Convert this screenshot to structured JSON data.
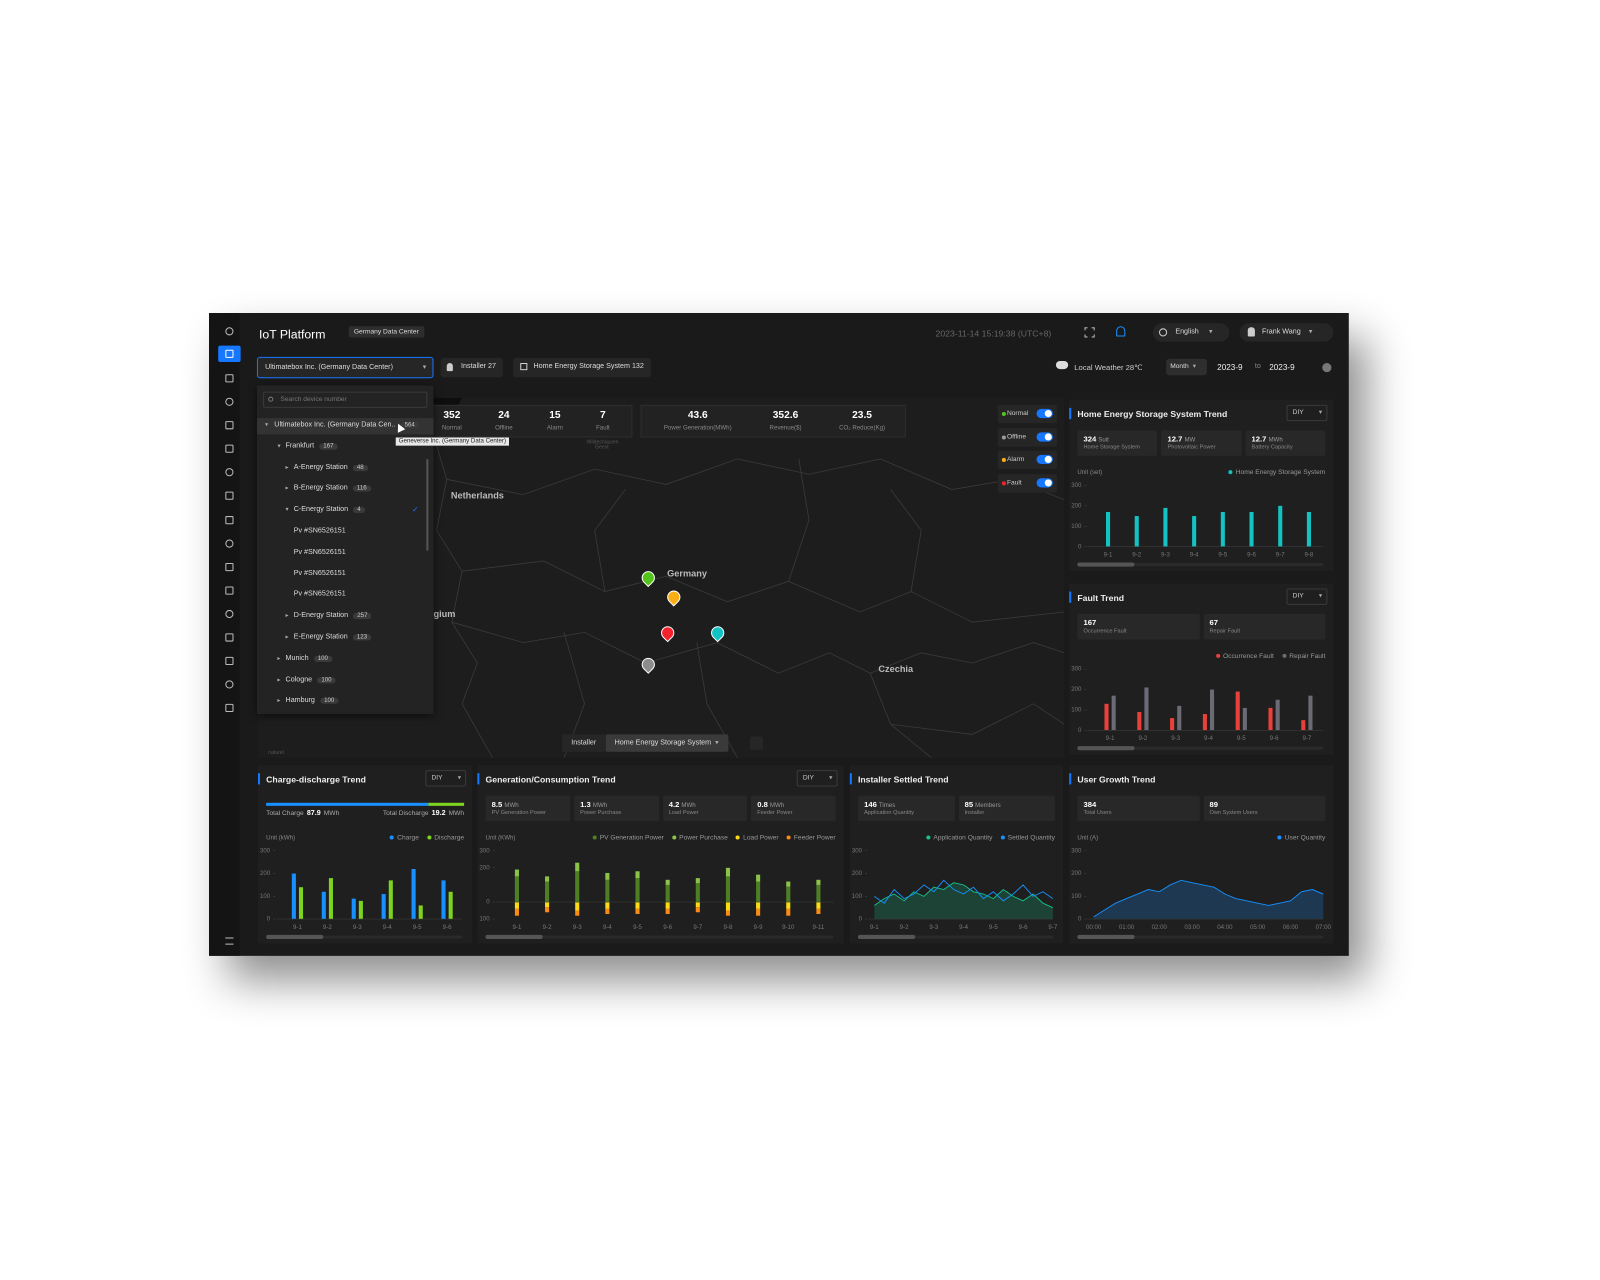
{
  "header": {
    "title": "IoT Platform",
    "badge": "Germany Data Center",
    "datetime": "2023-11-14 15:19:38 (UTC+8)",
    "language": "English",
    "user": "Frank Wang"
  },
  "toolbar": {
    "organization": "Ultimatebox Inc. (Germany Data Center)",
    "installer": "Installer 27",
    "system": "Home Energy Storage System 132",
    "weather": "Local Weather 28℃",
    "period": "Month",
    "from": "2023-9",
    "to_label": "to",
    "to": "2023-9"
  },
  "tree": {
    "search_placeholder": "Search device number",
    "tooltip": "Geneverse Inc. (Germany Data Center)",
    "nodes": [
      {
        "label": "Ultimatebox Inc. (Germany Data Cen..",
        "count": 564,
        "expanded": true,
        "hover": true,
        "children": [
          {
            "label": "Frankfurt",
            "count": 167,
            "expanded": true,
            "children": [
              {
                "label": "A-Energy Station",
                "count": 48,
                "expanded": false
              },
              {
                "label": "B-Energy Station",
                "count": 116,
                "expanded": false
              },
              {
                "label": "C-Energy Station",
                "count": 4,
                "expanded": true,
                "selected": true,
                "children": [
                  {
                    "label": "Pv #SN6526151"
                  },
                  {
                    "label": "Pv #SN6526151"
                  },
                  {
                    "label": "Pv #SN6526151"
                  },
                  {
                    "label": "Pv #SN6526151"
                  }
                ]
              },
              {
                "label": "D-Energy Station",
                "count": 257,
                "expanded": false
              },
              {
                "label": "E-Energy Station",
                "count": 123,
                "expanded": false
              }
            ]
          },
          {
            "label": "Munich",
            "count": 100,
            "expanded": false
          },
          {
            "label": "Cologne",
            "count": 100,
            "expanded": false
          },
          {
            "label": "Hamburg",
            "count": 100,
            "expanded": false
          }
        ]
      }
    ]
  },
  "map": {
    "stats": [
      {
        "value": 352,
        "label": "Normal"
      },
      {
        "value": 24,
        "label": "Offline"
      },
      {
        "value": 15,
        "label": "Alarm"
      },
      {
        "value": 7,
        "label": "Fault"
      }
    ],
    "summary": [
      {
        "value": 43.6,
        "label": "Power Generation(MWh)"
      },
      {
        "value": 352.6,
        "label": "Revenue($)"
      },
      {
        "value": 23.5,
        "label": "CO₂ Reduce(Kg)"
      }
    ],
    "filters": [
      {
        "label": "Normal",
        "color": "#52c41a",
        "on": true
      },
      {
        "label": "Offline",
        "color": "#9a9a9a",
        "on": true
      },
      {
        "label": "Alarm",
        "color": "#faad14",
        "on": true
      },
      {
        "label": "Fault",
        "color": "#f5222d",
        "on": true
      }
    ],
    "labels": [
      "Netherlands",
      "Germany",
      "Czechia",
      "gium",
      "Wildeshausen Geest",
      "naturel"
    ],
    "tabs": [
      {
        "label": "Installer"
      },
      {
        "label": "Home Energy Storage System",
        "active": true
      }
    ]
  },
  "chart_data": [
    {
      "type": "bar",
      "title": "Home Energy Storage System Trend",
      "selector": "DIY",
      "kpis": [
        {
          "value": 324,
          "unit": "Suit",
          "label": "Home Storage System"
        },
        {
          "value": 12.7,
          "unit": "MW",
          "label": "Photovoltaic Power"
        },
        {
          "value": 12.7,
          "unit": "MWh",
          "label": "Battery Capacity"
        }
      ],
      "unit_label": "Unit (set)",
      "categories": [
        "9-1",
        "9-2",
        "9-3",
        "9-4",
        "9-5",
        "9-6",
        "9-7",
        "9-8"
      ],
      "series": [
        {
          "name": "Home Energy Storage System",
          "color": "#13c2c2",
          "values": [
            170,
            150,
            190,
            150,
            170,
            170,
            200,
            170
          ]
        }
      ],
      "ylim": [
        0,
        300
      ],
      "yticks": [
        0,
        100,
        200,
        300
      ]
    },
    {
      "type": "bar",
      "title": "Fault Trend",
      "selector": "DIY",
      "kpis": [
        {
          "value": 167,
          "label": "Occurrence Fault"
        },
        {
          "value": 67,
          "label": "Repair Fault"
        }
      ],
      "categories": [
        "9-1",
        "9-2",
        "9-3",
        "9-4",
        "9-5",
        "9-6",
        "9-7"
      ],
      "series": [
        {
          "name": "Occurrence Fault",
          "color": "#e8413a",
          "values": [
            130,
            90,
            60,
            80,
            190,
            110,
            50
          ]
        },
        {
          "name": "Repair Fault",
          "color": "#6b6b75",
          "values": [
            170,
            210,
            120,
            200,
            110,
            150,
            170
          ]
        }
      ],
      "ylim": [
        0,
        300
      ],
      "yticks": [
        0,
        100,
        200,
        300
      ]
    },
    {
      "type": "bar",
      "title": "Charge-discharge Trend",
      "selector": "DIY",
      "kpi_layout": "progress",
      "kpis": [
        {
          "label": "Total Charge",
          "value": 87.9,
          "unit": "MWh",
          "color": "#1890ff"
        },
        {
          "label": "Total Discharge",
          "value": 19.2,
          "unit": "MWh",
          "color": "#7ed321"
        }
      ],
      "unit_label": "Unit (kWh)",
      "categories": [
        "9-1",
        "9-2",
        "9-3",
        "9-4",
        "9-5",
        "9-6"
      ],
      "series": [
        {
          "name": "Charge",
          "color": "#1890ff",
          "values": [
            200,
            120,
            90,
            110,
            220,
            170
          ]
        },
        {
          "name": "Discharge",
          "color": "#7ed321",
          "values": [
            140,
            180,
            80,
            170,
            60,
            120
          ]
        }
      ],
      "ylim": [
        0,
        300
      ],
      "yticks": [
        0,
        100,
        200,
        300
      ]
    },
    {
      "type": "stacked",
      "title": "Generation/Consumption Trend",
      "selector": "DIY",
      "kpis": [
        {
          "value": 8.5,
          "unit": "MWh",
          "label": "PV Generation Power"
        },
        {
          "value": 1.3,
          "unit": "MWh",
          "label": "Power Purchase"
        },
        {
          "value": 4.2,
          "unit": "MWh",
          "label": "Load Power"
        },
        {
          "value": 0.8,
          "unit": "MWh",
          "label": "Feeder Power"
        }
      ],
      "unit_label": "Unit (KWh)",
      "categories": [
        "9-1",
        "9-2",
        "9-3",
        "9-4",
        "9-5",
        "9-6",
        "9-7",
        "9-8",
        "9-9",
        "9-10",
        "9-11"
      ],
      "series": [
        {
          "name": "PV Generation Power",
          "color": "#4f7f25",
          "values": [
            150,
            120,
            180,
            130,
            140,
            100,
            110,
            150,
            120,
            90,
            100
          ]
        },
        {
          "name": "Power Purchase",
          "color": "#8bc34a",
          "values": [
            40,
            30,
            50,
            40,
            40,
            30,
            30,
            50,
            40,
            30,
            30
          ]
        },
        {
          "name": "Load Power",
          "color": "#fadb14",
          "values": [
            -40,
            -30,
            -50,
            -40,
            -40,
            -40,
            -30,
            -50,
            -40,
            -40,
            -40
          ]
        },
        {
          "name": "Feeder Power",
          "color": "#fa8c16",
          "values": [
            -40,
            -30,
            -30,
            -30,
            -30,
            -30,
            -30,
            -30,
            -40,
            -40,
            -30
          ]
        }
      ],
      "ylim": [
        -100,
        300
      ],
      "yticks": [
        {
          "value": -100,
          "label": "100"
        },
        0,
        200,
        300
      ]
    },
    {
      "type": "line",
      "title": "Installer Settled Trend",
      "kpis": [
        {
          "value": 146,
          "unit": "Times",
          "label": "Application Quantity"
        },
        {
          "value": 85,
          "unit": "Members",
          "label": "Installer"
        }
      ],
      "categories": [
        "9-1",
        null,
        null,
        "9-2",
        null,
        null,
        "9-3",
        null,
        null,
        "9-4",
        null,
        null,
        "9-5",
        null,
        null,
        "9-6",
        null,
        null,
        "9-7"
      ],
      "series": [
        {
          "name": "Application Quantity",
          "color": "#13c28a",
          "fill": true,
          "values": [
            60,
            90,
            110,
            80,
            120,
            100,
            140,
            130,
            160,
            150,
            120,
            110,
            90,
            130,
            100,
            80,
            110,
            70,
            50
          ]
        },
        {
          "name": "Settled Quantity",
          "color": "#1890ff",
          "values": [
            100,
            70,
            130,
            90,
            110,
            150,
            120,
            170,
            130,
            110,
            140,
            90,
            120,
            80,
            110,
            150,
            100,
            120,
            90
          ]
        }
      ],
      "ylim": [
        0,
        300
      ],
      "yticks": [
        0,
        100,
        200,
        300
      ]
    },
    {
      "type": "line",
      "title": "User Growth Trend",
      "kpis": [
        {
          "value": 384,
          "label": "Total Users"
        },
        {
          "value": 89,
          "label": "Own System Users"
        }
      ],
      "unit_label": "Unit (A)",
      "categories": [
        "00:00",
        null,
        null,
        "01:00",
        null,
        null,
        "02:00",
        null,
        null,
        "03:00",
        null,
        null,
        "04:00",
        null,
        null,
        "05:00",
        null,
        null,
        "06:00",
        null,
        null,
        "07:00"
      ],
      "series": [
        {
          "name": "User Quantity",
          "color": "#1890ff",
          "fill": true,
          "values": [
            10,
            40,
            70,
            90,
            110,
            130,
            120,
            150,
            170,
            160,
            150,
            140,
            110,
            90,
            80,
            70,
            60,
            70,
            80,
            120,
            130,
            110
          ]
        }
      ],
      "ylim": [
        0,
        300
      ],
      "yticks": [
        0,
        100,
        200,
        300
      ]
    }
  ]
}
